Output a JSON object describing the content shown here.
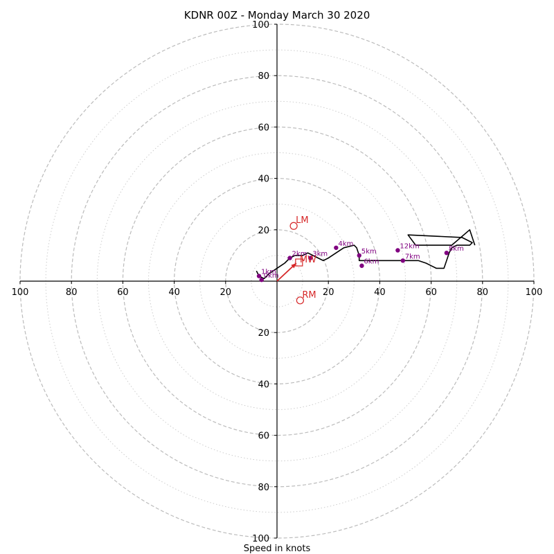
{
  "chart_data": {
    "type": "hodograph",
    "title": "KDNR 00Z - Monday March 30 2020",
    "xlabel": "Speed in knots",
    "axis_range": [
      -100,
      100
    ],
    "tick_labels": [
      "100",
      "80",
      "60",
      "40",
      "20",
      "20",
      "40",
      "60",
      "80",
      "100"
    ],
    "vertical_tick_labels": [
      "100",
      "80",
      "60",
      "40",
      "20",
      "20",
      "40",
      "60",
      "80",
      "100"
    ],
    "rings": {
      "major_dashed": [
        20,
        40,
        60,
        80,
        100
      ],
      "minor_dotted": [
        10,
        30,
        50,
        70,
        90
      ]
    },
    "hodograph_trace": {
      "u": [
        -8,
        -7,
        -5,
        -3,
        0,
        3,
        5,
        7,
        10,
        12,
        14,
        16,
        18,
        20,
        23,
        26,
        30,
        31,
        32,
        32,
        38,
        45,
        52,
        55,
        58,
        60,
        62,
        65,
        66,
        67,
        68,
        70,
        75,
        76,
        72,
        51,
        54,
        68,
        75,
        77
      ],
      "v": [
        4,
        2,
        1,
        3,
        5,
        7,
        9,
        10,
        10,
        11,
        10,
        9,
        8,
        9,
        11,
        13,
        14,
        13,
        10,
        8,
        8,
        8,
        8,
        8,
        7,
        6,
        5,
        5,
        8,
        11,
        13,
        14,
        14,
        15,
        17,
        18,
        14,
        14,
        20,
        14
      ],
      "color": "#000000"
    },
    "height_markers": [
      {
        "label": "1km",
        "u": -7,
        "v": 2
      },
      {
        "label": "0km",
        "u": -6,
        "v": 0.5
      },
      {
        "label": "2km",
        "u": 5,
        "v": 9
      },
      {
        "label": "3km",
        "u": 13,
        "v": 9
      },
      {
        "label": "4km",
        "u": 23,
        "v": 13
      },
      {
        "label": "5km",
        "u": 32,
        "v": 10
      },
      {
        "label": "6km",
        "u": 33,
        "v": 6
      },
      {
        "label": "7km",
        "u": 49,
        "v": 8
      },
      {
        "label": "8km",
        "u": 66,
        "v": 11
      },
      {
        "label": "12km",
        "u": 47,
        "v": 12
      }
    ],
    "marker_color": "#800080",
    "storm_motion": {
      "LM": {
        "label": "LM",
        "u": 6.5,
        "v": 21.5
      },
      "RM": {
        "label": "RM",
        "u": 9,
        "v": -7.5
      },
      "MW": {
        "label": "MW",
        "u": 7.5,
        "v": 7
      },
      "color": "#d62728"
    }
  }
}
